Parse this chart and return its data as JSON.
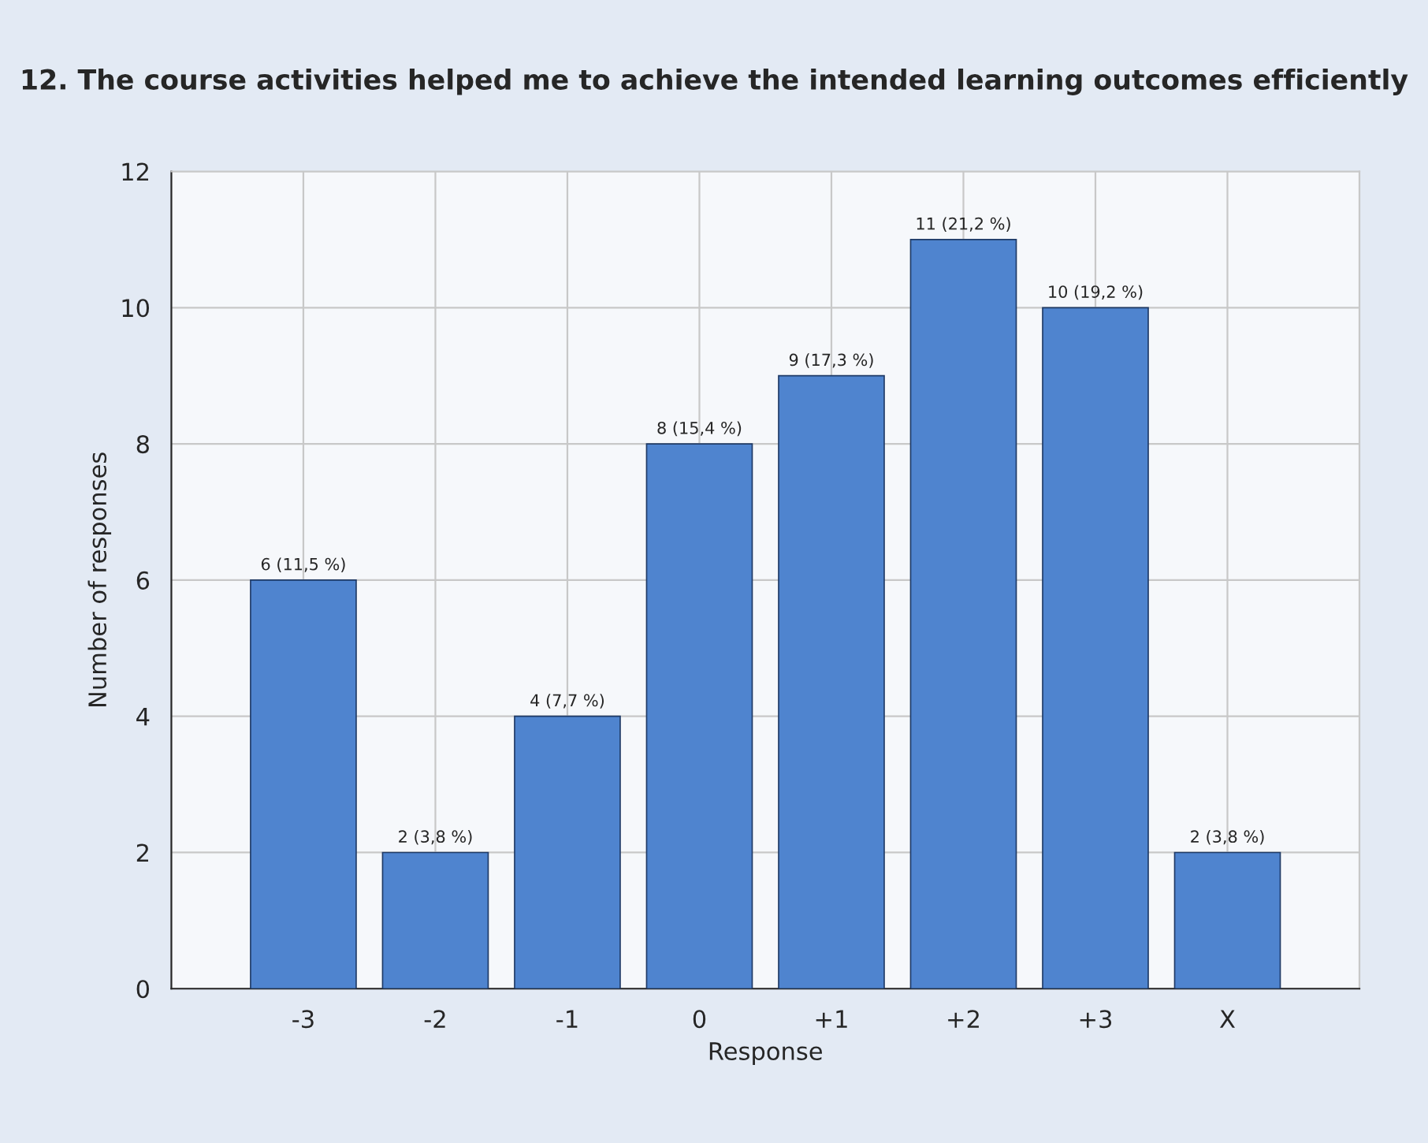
{
  "chart_data": {
    "type": "bar",
    "title": "12. The course activities helped me to achieve the intended learning outcomes efficiently",
    "xlabel": "Response",
    "ylabel": "Number of responses",
    "categories": [
      "-3",
      "-2",
      "-1",
      "0",
      "+1",
      "+2",
      "+3",
      "X"
    ],
    "values": [
      6,
      2,
      4,
      8,
      9,
      11,
      10,
      2
    ],
    "value_labels": [
      "6 (11,5 %)",
      "2 (3,8 %)",
      "4 (7,7 %)",
      "8 (15,4 %)",
      "9 (17,3 %)",
      "11 (21,2 %)",
      "10 (19,2 %)",
      "2 (3,8 %)"
    ],
    "color": "#4f84cf",
    "ylim": [
      0,
      12
    ],
    "yticks": [
      0,
      2,
      4,
      6,
      8,
      10,
      12
    ],
    "grid": true,
    "legend": false
  }
}
